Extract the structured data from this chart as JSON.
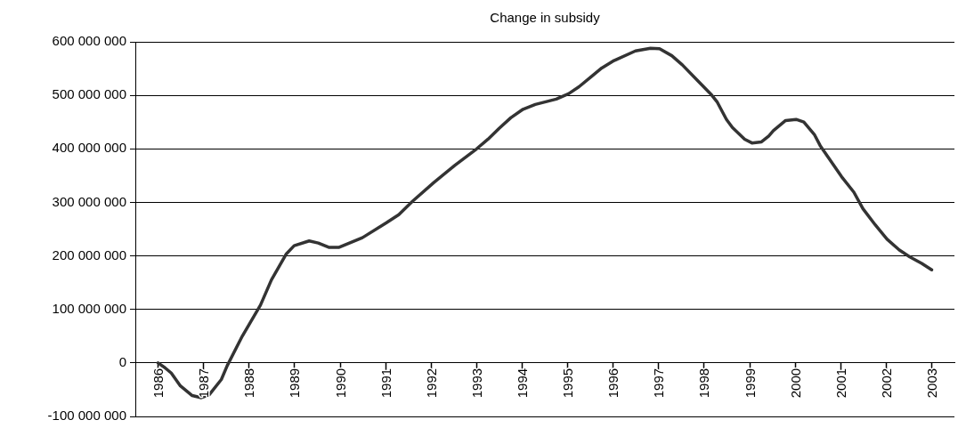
{
  "chart_data": {
    "type": "line",
    "title": "Change in subsidy",
    "x": [
      1986,
      1986.15,
      1986.29,
      1986.49,
      1986.75,
      1986.95,
      1987.12,
      1987.39,
      1987.52,
      1987.85,
      1988.25,
      1988.49,
      1988.82,
      1988.99,
      1989.32,
      1989.52,
      1989.75,
      1989.98,
      1990.49,
      1991.02,
      1991.29,
      1991.59,
      1992.06,
      1992.52,
      1993,
      1993.25,
      1993.49,
      1993.75,
      1994.02,
      1994.29,
      1994.75,
      1995.02,
      1995.25,
      1995.52,
      1995.75,
      1996.02,
      1996.49,
      1996.82,
      1997.02,
      1997.29,
      1997.52,
      1997.85,
      1998.15,
      1998.29,
      1998.49,
      1998.62,
      1998.89,
      1999.05,
      1999.26,
      1999.42,
      1999.52,
      1999.79,
      2000.02,
      2000.19,
      2000.42,
      2000.55,
      2001.02,
      2001.29,
      2001.49,
      2001.76,
      2002.02,
      2002.29,
      2002.52,
      2002.78,
      2003
    ],
    "series": [
      {
        "color": "#333333",
        "values": [
          0,
          -9000000,
          -19000000,
          -43000000,
          -61000000,
          -65000000,
          -60000000,
          -31000000,
          -5000000,
          50000000,
          108000000,
          155000000,
          204000000,
          219000000,
          228000000,
          224000000,
          216000000,
          216000000,
          234000000,
          262000000,
          277000000,
          302000000,
          337000000,
          369000000,
          400000000,
          418000000,
          438000000,
          458000000,
          474000000,
          483000000,
          493000000,
          503000000,
          516000000,
          535000000,
          551000000,
          565000000,
          583000000,
          588000000,
          587000000,
          574000000,
          557000000,
          528000000,
          502000000,
          487000000,
          455000000,
          440000000,
          418000000,
          411000000,
          413000000,
          424000000,
          434000000,
          453000000,
          455000000,
          450000000,
          427000000,
          406000000,
          348000000,
          319000000,
          288000000,
          258000000,
          231000000,
          211000000,
          198000000,
          186000000,
          174000000
        ]
      }
    ],
    "xlim": [
      1985.5,
      2003.5
    ],
    "xticks": [
      1986,
      1987,
      1988,
      1989,
      1990,
      1991,
      1992,
      1993,
      1994,
      1995,
      1996,
      1997,
      1998,
      1999,
      2000,
      2001,
      2002,
      2003
    ],
    "ylim": [
      -100000000,
      600000000
    ],
    "yticks": [
      {
        "value": -100000000,
        "label": "-100 000 000"
      },
      {
        "value": 0,
        "label": "0"
      },
      {
        "value": 100000000,
        "label": "100 000 000"
      },
      {
        "value": 200000000,
        "label": "200 000 000"
      },
      {
        "value": 300000000,
        "label": "300 000 000"
      },
      {
        "value": 400000000,
        "label": "400 000 000"
      },
      {
        "value": 500000000,
        "label": "500 000 000"
      },
      {
        "value": 600000000,
        "label": "600 000 000"
      }
    ],
    "grid": "y",
    "legend": false,
    "marker": "none",
    "line_style": "solid"
  }
}
